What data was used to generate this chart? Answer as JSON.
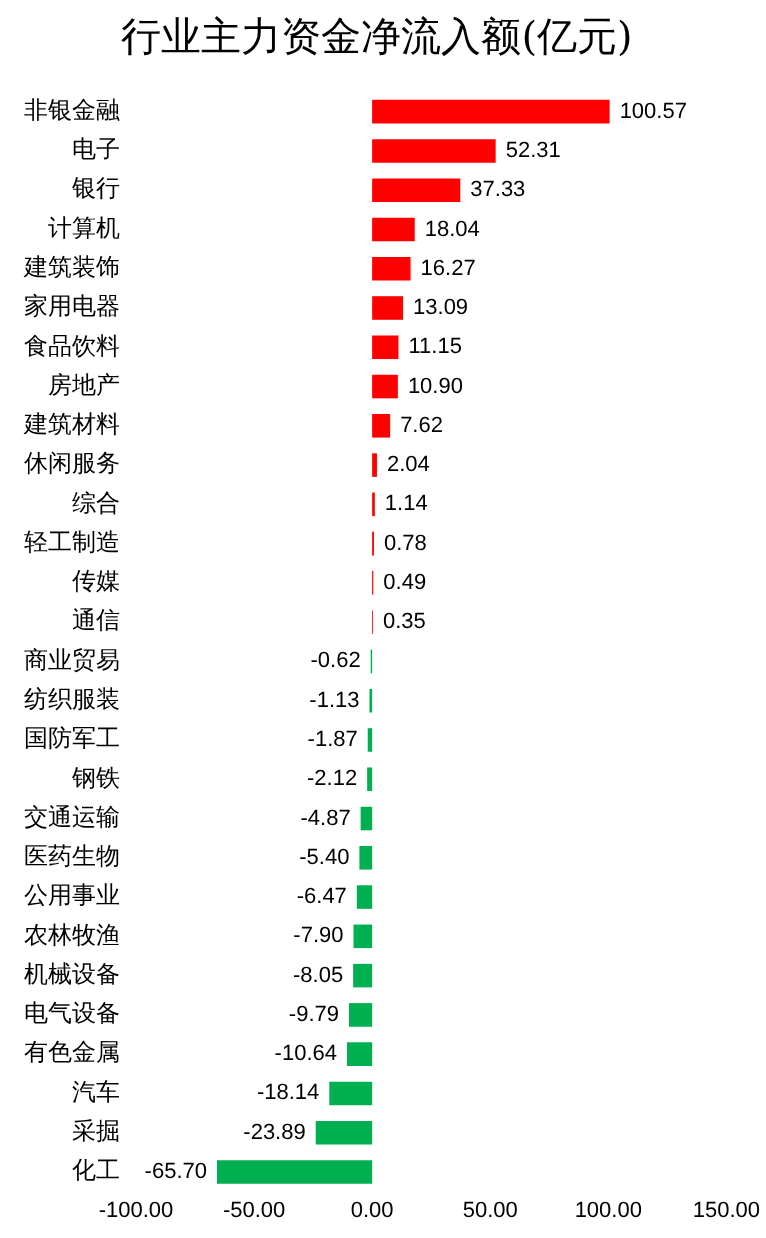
{
  "chart_data": {
    "type": "bar",
    "orientation": "horizontal",
    "title": "行业主力资金净流入额(亿元)",
    "categories": [
      "非银金融",
      "电子",
      "银行",
      "计算机",
      "建筑装饰",
      "家用电器",
      "食品饮料",
      "房地产",
      "建筑材料",
      "休闲服务",
      "综合",
      "轻工制造",
      "传媒",
      "通信",
      "商业贸易",
      "纺织服装",
      "国防军工",
      "钢铁",
      "交通运输",
      "医药生物",
      "公用事业",
      "农林牧渔",
      "机械设备",
      "电气设备",
      "有色金属",
      "汽车",
      "采掘",
      "化工"
    ],
    "values": [
      100.57,
      52.31,
      37.33,
      18.04,
      16.27,
      13.09,
      11.15,
      10.9,
      7.62,
      2.04,
      1.14,
      0.78,
      0.49,
      0.35,
      -0.62,
      -1.13,
      -1.87,
      -2.12,
      -4.87,
      -5.4,
      -6.47,
      -7.9,
      -8.05,
      -9.79,
      -10.64,
      -18.14,
      -23.89,
      -65.7
    ],
    "value_labels": [
      "100.57",
      "52.31",
      "37.33",
      "18.04",
      "16.27",
      "13.09",
      "11.15",
      "10.90",
      "7.62",
      "2.04",
      "1.14",
      "0.78",
      "0.49",
      "0.35",
      "-0.62",
      "-1.13",
      "-1.87",
      "-2.12",
      "-4.87",
      "-5.40",
      "-6.47",
      "-7.90",
      "-8.05",
      "-9.79",
      "-10.64",
      "-18.14",
      "-23.89",
      "-65.70"
    ],
    "colors": [
      "#ff0000",
      "#ff0000",
      "#ff0000",
      "#ff0000",
      "#ff0000",
      "#ff0000",
      "#ff0000",
      "#ff0000",
      "#ff0000",
      "#ff0000",
      "#ff0000",
      "#ff0000",
      "#ff0000",
      "#ff0000",
      "#00b050",
      "#00b050",
      "#00b050",
      "#00b050",
      "#00b050",
      "#00b050",
      "#00b050",
      "#00b050",
      "#00b050",
      "#00b050",
      "#00b050",
      "#00b050",
      "#00b050",
      "#00b050"
    ],
    "xlim": [
      -100,
      150
    ],
    "xticks": [
      {
        "value": -100,
        "label": "-100.00"
      },
      {
        "value": -50,
        "label": "-50.00"
      },
      {
        "value": 0,
        "label": "0.00"
      },
      {
        "value": 50,
        "label": "50.00"
      },
      {
        "value": 100,
        "label": "100.00"
      },
      {
        "value": 150,
        "label": "150.00"
      }
    ],
    "grid": false,
    "legend": false
  }
}
